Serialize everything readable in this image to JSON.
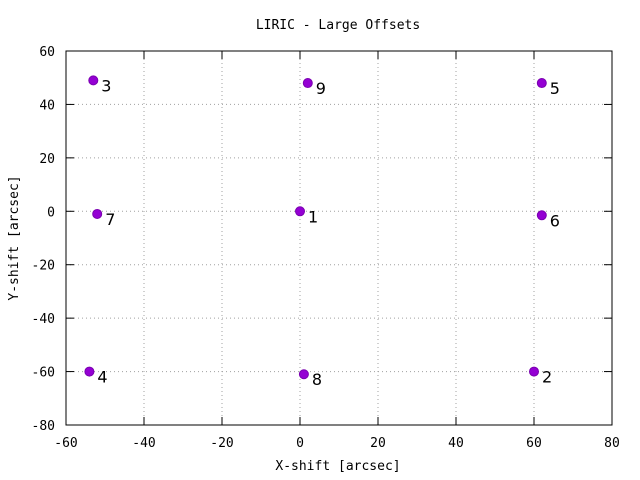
{
  "chart_data": {
    "type": "scatter",
    "title": "LIRIC - Large Offsets",
    "xlabel": "X-shift [arcsec]",
    "ylabel": "Y-shift [arcsec]",
    "xlim": [
      -60,
      80
    ],
    "ylim": [
      -80,
      60
    ],
    "xticks": [
      -60,
      -40,
      -20,
      0,
      20,
      40,
      60,
      80
    ],
    "yticks": [
      -80,
      -60,
      -40,
      -20,
      0,
      20,
      40,
      60
    ],
    "xtick_labels": [
      "-60",
      "-40",
      "-20",
      "0",
      "20",
      "40",
      "60",
      "80"
    ],
    "ytick_labels": [
      "-80",
      "-60",
      "-40",
      "-20",
      "0",
      "20",
      "40",
      "60"
    ],
    "grid": true,
    "marker_color": "#9400d3",
    "points": [
      {
        "label": "1",
        "x": 0,
        "y": 0
      },
      {
        "label": "2",
        "x": 60,
        "y": -60
      },
      {
        "label": "3",
        "x": -53,
        "y": 49
      },
      {
        "label": "4",
        "x": -54,
        "y": -60
      },
      {
        "label": "5",
        "x": 62,
        "y": 48
      },
      {
        "label": "6",
        "x": 62,
        "y": -1.5
      },
      {
        "label": "7",
        "x": -52,
        "y": -1
      },
      {
        "label": "8",
        "x": 1,
        "y": -61
      },
      {
        "label": "9",
        "x": 2,
        "y": 48
      }
    ]
  }
}
